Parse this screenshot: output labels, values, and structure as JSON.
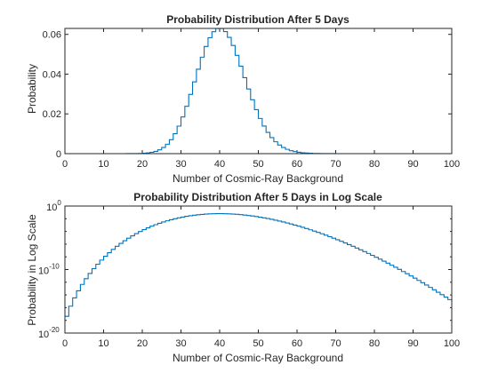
{
  "colors": {
    "series": "#0072BD",
    "axis": "#262626",
    "background": "#ffffff"
  },
  "chart_data": [
    {
      "type": "line",
      "step": true,
      "title": "Probability Distribution After 5 Days",
      "xlabel": "Number of Cosmic-Ray Background",
      "ylabel": "Probability",
      "xlim": [
        0,
        100
      ],
      "ylim": [
        0,
        0.063
      ],
      "yscale": "linear",
      "grid": false,
      "xticks": [
        0,
        10,
        20,
        30,
        40,
        50,
        60,
        70,
        80,
        90,
        100
      ],
      "yticks": [
        0,
        0.02,
        0.04,
        0.06
      ],
      "x_tick_labels": [
        "0",
        "10",
        "20",
        "30",
        "40",
        "50",
        "60",
        "70",
        "80",
        "90",
        "100"
      ],
      "y_tick_labels": [
        "0",
        "0.02",
        "0.04",
        "0.06"
      ],
      "distribution": {
        "family": "poisson",
        "mean": 40,
        "support": [
          0,
          100
        ]
      }
    },
    {
      "type": "line",
      "step": true,
      "title": "Probability Distribution After 5 Days in Log Scale",
      "xlabel": "Number of Cosmic-Ray Background",
      "ylabel": "Probability in Log Scale",
      "xlim": [
        0,
        100
      ],
      "ylim": [
        1e-20,
        1
      ],
      "yscale": "log",
      "grid": false,
      "xticks": [
        0,
        10,
        20,
        30,
        40,
        50,
        60,
        70,
        80,
        90,
        100
      ],
      "yticks": [
        1e-20,
        1e-10,
        1
      ],
      "x_tick_labels": [
        "0",
        "10",
        "20",
        "30",
        "40",
        "50",
        "60",
        "70",
        "80",
        "90",
        "100"
      ],
      "y_tick_base": "10",
      "y_tick_exponents": [
        "-20",
        "-10",
        "0"
      ],
      "distribution": {
        "family": "poisson",
        "mean": 40,
        "support": [
          0,
          100
        ]
      }
    }
  ]
}
